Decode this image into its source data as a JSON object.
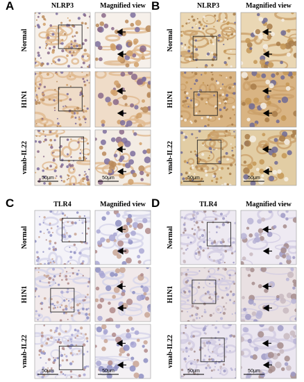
{
  "panels": [
    {
      "label": "A",
      "marker": "NLRP3",
      "magnified_header": "Magnified view",
      "row_labels": [
        "Normal",
        "H1N1",
        "vmab-IL22"
      ],
      "scale_bar": "50μm"
    },
    {
      "label": "B",
      "marker": "NLRP3",
      "magnified_header": "Magnified view",
      "row_labels": [
        "Normal",
        "H1N1",
        "vmab-IL22"
      ],
      "scale_bar": "50μm"
    },
    {
      "label": "C",
      "marker": "TLR4",
      "magnified_header": "Magnified view",
      "row_labels": [
        "Normal",
        "H1N1",
        "vmab-IL22"
      ],
      "scale_bar": "50μm"
    },
    {
      "label": "D",
      "marker": "TLR4",
      "magnified_header": "Magnified view",
      "row_labels": [
        "Normal",
        "H1N1",
        "vmab-IL22"
      ],
      "scale_bar": "50μm"
    }
  ]
}
